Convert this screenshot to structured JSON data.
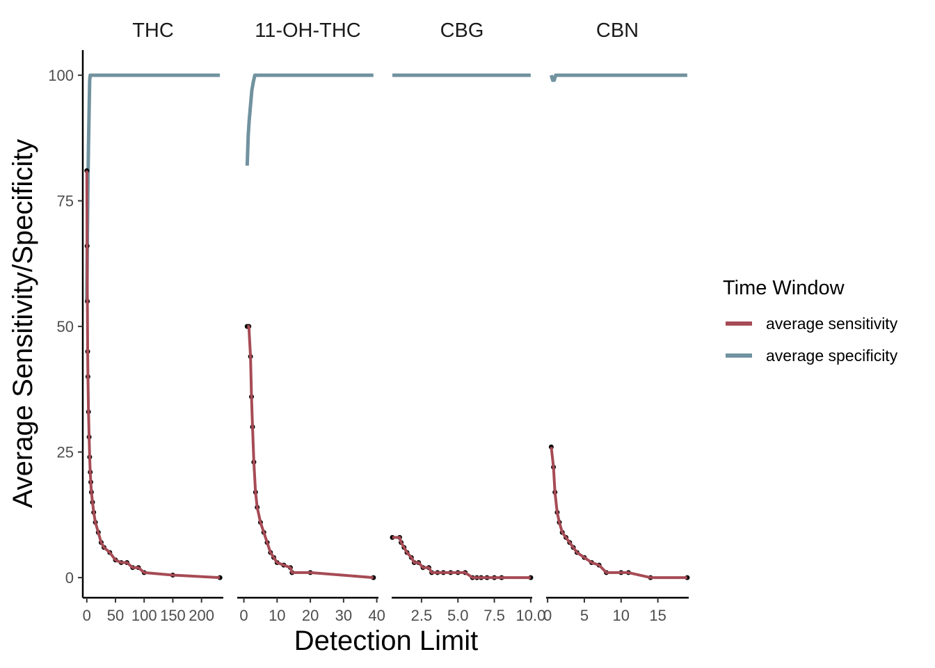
{
  "chart_data": {
    "type": "line",
    "ylabel": "Average Sensitivity/Specificity",
    "xlabel": "Detection Limit",
    "ylim": [
      -4,
      105
    ],
    "yticks": [
      0,
      25,
      50,
      75,
      100
    ],
    "grid": false,
    "legend": {
      "title": "Time Window",
      "placement": "right",
      "entries": [
        {
          "label": "average sensitivity",
          "color": "#A64B55"
        },
        {
          "label": "average specificity",
          "color": "#71929F"
        }
      ]
    },
    "colors": {
      "sensitivity": "#A64B55",
      "specificity": "#71929F",
      "points": "#000000"
    },
    "panels": [
      {
        "title": "THC",
        "xlim": [
          -7,
          238
        ],
        "xticks": [
          0,
          50,
          100,
          150,
          200
        ],
        "xtick_labels": [
          "0",
          "50",
          "100",
          "150",
          "200"
        ],
        "series": [
          {
            "name": "average sensitivity",
            "x": [
              0,
              0.5,
              1,
              1.5,
              2,
              3,
              4,
              5,
              6,
              7,
              8,
              10,
              12,
              15,
              20,
              25,
              30,
              40,
              50,
              60,
              70,
              80,
              90,
              100,
              150,
              232
            ],
            "y": [
              81,
              66,
              55,
              45,
              40,
              33,
              28,
              24,
              21,
              19,
              17,
              15,
              13,
              11,
              9,
              7,
              6,
              5,
              3.5,
              3,
              3,
              2,
              2,
              1,
              0.5,
              0
            ]
          },
          {
            "name": "average specificity",
            "x": [
              0,
              1,
              2,
              3,
              4,
              5,
              6,
              232
            ],
            "y": [
              55,
              68,
              78,
              86,
              93,
              99,
              100,
              100
            ]
          }
        ]
      },
      {
        "title": "11-OH-THC",
        "xlim": [
          -2,
          40.5
        ],
        "xticks": [
          0,
          10,
          20,
          30,
          40
        ],
        "xtick_labels": [
          "0",
          "10",
          "20",
          "30",
          "40"
        ],
        "series": [
          {
            "name": "average sensitivity",
            "x": [
              1,
              1.5,
              2,
              2.3,
              2.6,
              3,
              3.5,
              4,
              5,
              6,
              7,
              8,
              9,
              10,
              12,
              14,
              14.5,
              20,
              39
            ],
            "y": [
              50,
              50,
              44,
              36,
              30,
              23,
              17,
              14,
              11,
              9,
              7,
              5,
              4,
              3,
              2.5,
              2,
              1,
              1,
              0
            ]
          },
          {
            "name": "average specificity",
            "x": [
              1,
              1.3,
              1.6,
              2,
              2.4,
              2.8,
              3.3,
              39
            ],
            "y": [
              82,
              88,
              91,
              94,
              97,
              98.5,
              100,
              100
            ]
          }
        ]
      },
      {
        "title": "CBG",
        "xlim": [
          0.45,
          10.1
        ],
        "xticks": [
          2.5,
          5.0,
          7.5,
          10.0
        ],
        "xtick_labels": [
          "2.5",
          "5.0",
          "7.5",
          "10.0"
        ],
        "series": [
          {
            "name": "average sensitivity",
            "x": [
              0.5,
              1.0,
              1.1,
              1.3,
              1.5,
              1.8,
              2.0,
              2.3,
              2.6,
              3.0,
              3.2,
              3.6,
              4.0,
              4.5,
              5.0,
              5.5,
              6.0,
              6.3,
              6.6,
              7.0,
              7.5,
              8.0,
              10.0
            ],
            "y": [
              8,
              8,
              7,
              6,
              5,
              4,
              3,
              3,
              2,
              2,
              1,
              1,
              1,
              1,
              1,
              1,
              0,
              0,
              0,
              0,
              0,
              0,
              0
            ]
          },
          {
            "name": "average specificity",
            "x": [
              0.5,
              10.0
            ],
            "y": [
              100,
              100
            ]
          }
        ]
      },
      {
        "title": "CBN",
        "xlim": [
          -0.2,
          19.2
        ],
        "xticks": [
          0,
          5,
          10,
          15
        ],
        "xtick_labels": [
          "0",
          "5",
          "10",
          "15"
        ],
        "series": [
          {
            "name": "average sensitivity",
            "x": [
              0.5,
              0.8,
              1.0,
              1.3,
              1.6,
              2.0,
              2.5,
              3.0,
              3.5,
              4.0,
              5.0,
              6.0,
              7.0,
              8.0,
              10.0,
              11.0,
              14.0,
              19.0
            ],
            "y": [
              26,
              22,
              17,
              13,
              11,
              9,
              8,
              7,
              6,
              5,
              4,
              3,
              2.5,
              1,
              1,
              1,
              0,
              0
            ]
          },
          {
            "name": "average specificity",
            "x": [
              0.5,
              0.7,
              0.9,
              1.1,
              19.0
            ],
            "y": [
              100,
              99,
              99,
              100,
              100
            ]
          }
        ]
      }
    ]
  }
}
